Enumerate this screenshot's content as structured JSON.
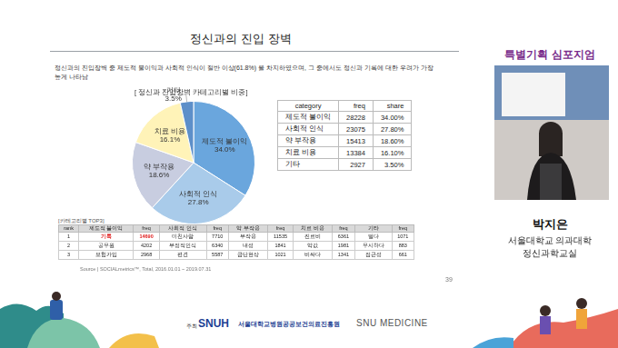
{
  "slide": {
    "title": "정신과의 진입 장벽",
    "subtitle": "정신과의 진입장벽 중 제도적 불이익과 사회적 인식이 절반 이상(61.8%) 을 차지하였으며, 그 중에서도 정신과 기록에 대한 우려가 가장 높게 나타남",
    "page": "39",
    "source": "Source | SOCIALmetrics™, Total, 2016.01.01 ~ 2019.07.31"
  },
  "chart_data": {
    "type": "pie",
    "title": "[ 정신과 진입장벽 카테고리별 비중]",
    "categories": [
      "제도적 불이익",
      "사회적 인식",
      "약 부작용",
      "치료 비용",
      "기타"
    ],
    "values": [
      34.0,
      27.8,
      18.6,
      16.1,
      3.5
    ],
    "value_labels": [
      "34.0%",
      "27.8%",
      "18.6%",
      "16.1%",
      "3.5%"
    ],
    "colors": [
      "#6aa6dd",
      "#a9cbea",
      "#c8cde0",
      "#fff3b8",
      "#5d8fc9"
    ],
    "data_labels": true
  },
  "category_table": {
    "header": [
      "category",
      "freq",
      "share"
    ],
    "rows": [
      [
        "제도적 불이익",
        28228,
        "34.00%"
      ],
      [
        "사회적 인식",
        23075,
        "27.80%"
      ],
      [
        "약 부작용",
        15413,
        "18.60%"
      ],
      [
        "치료 비용",
        13384,
        "16.10%"
      ],
      [
        "기타",
        2927,
        "3.50%"
      ]
    ]
  },
  "top3_table": {
    "title": "[카테고리별 TOP3]",
    "header": [
      "rank",
      "제도적 불이익",
      "freq",
      "사회적 인식",
      "freq",
      "약 부작용",
      "freq",
      "치료 비용",
      "freq",
      "기타",
      "freq"
    ],
    "rows": [
      [
        1,
        "기록",
        14690,
        "미친사람",
        7710,
        "부작용",
        11535,
        "진료비",
        6361,
        "멀다",
        1071
      ],
      [
        2,
        "공무원",
        4202,
        "부정적인식",
        6340,
        "내성",
        1841,
        "약값",
        1981,
        "무시하다",
        883
      ],
      [
        3,
        "보험가입",
        2968,
        "편견",
        5587,
        "금단현상",
        1021,
        "비싸다",
        1341,
        "접근성",
        661
      ]
    ]
  },
  "side_panel": {
    "banner": "특별기획 심포지엄",
    "speaker": "박지은",
    "affiliation": [
      "서울대학교 의과대학",
      "정신과학교실"
    ]
  },
  "footer": {
    "host": "주최",
    "logo": "SNUH",
    "organization": "서울대학교병원공공보건의료진흥원",
    "partner": "SNU MEDICINE"
  }
}
